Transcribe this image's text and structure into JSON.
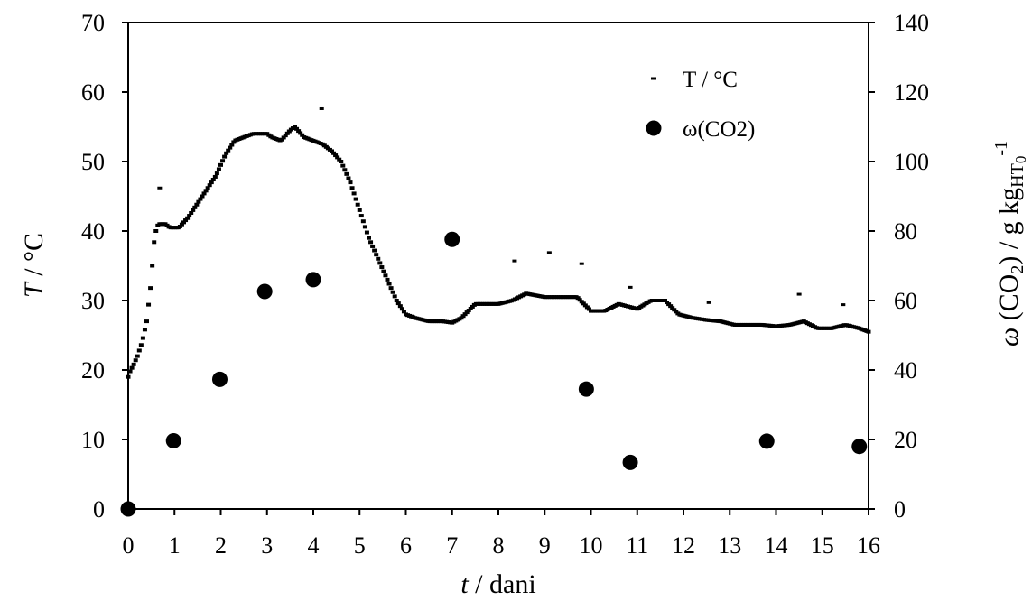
{
  "chart_data": {
    "type": "scatter",
    "xlabel": {
      "italic": "t",
      "rest": " / dani"
    },
    "ylabel_left": {
      "italic": "T",
      "rest": " / °C"
    },
    "ylabel_right": {
      "parts": [
        [
          "ω",
          "italic"
        ],
        [
          " (CO",
          ""
        ],
        [
          "2",
          "sub"
        ],
        [
          ")  / g kg",
          ""
        ],
        [
          "HT",
          "sub"
        ],
        [
          "0",
          "subsub"
        ],
        [
          "-1",
          "sup"
        ]
      ]
    },
    "xlim": [
      0,
      16
    ],
    "ylim_left": [
      0,
      70
    ],
    "ylim_right": [
      0,
      140
    ],
    "x_ticks": [
      0,
      1,
      2,
      3,
      4,
      5,
      6,
      7,
      8,
      9,
      10,
      11,
      12,
      13,
      14,
      15,
      16
    ],
    "y_left_ticks": [
      0,
      10,
      20,
      30,
      40,
      50,
      60,
      70
    ],
    "y_right_ticks": [
      0,
      20,
      40,
      60,
      80,
      100,
      120,
      140
    ],
    "grid": false,
    "legend": {
      "placement": "top-right",
      "entries": [
        {
          "label": "T / °C",
          "marker": "dash"
        },
        {
          "label": "ω(CO2)",
          "marker": "circle"
        }
      ]
    },
    "series": [
      {
        "name": "T / °C",
        "axis": "left",
        "marker": "dash",
        "keypoints": [
          [
            0,
            19
          ],
          [
            0.05,
            20
          ],
          [
            0.1,
            20.5
          ],
          [
            0.2,
            22
          ],
          [
            0.3,
            24
          ],
          [
            0.4,
            27
          ],
          [
            0.5,
            33
          ],
          [
            0.55,
            38
          ],
          [
            0.6,
            40
          ],
          [
            0.65,
            41
          ],
          [
            0.8,
            41
          ],
          [
            0.9,
            40.5
          ],
          [
            1.1,
            40.5
          ],
          [
            1.3,
            42
          ],
          [
            1.5,
            44
          ],
          [
            1.7,
            46
          ],
          [
            1.9,
            48
          ],
          [
            2.1,
            51
          ],
          [
            2.3,
            53
          ],
          [
            2.5,
            53.5
          ],
          [
            2.7,
            54
          ],
          [
            2.9,
            54
          ],
          [
            3.0,
            54
          ],
          [
            3.1,
            53.5
          ],
          [
            3.3,
            53
          ],
          [
            3.5,
            54.5
          ],
          [
            3.6,
            55
          ],
          [
            3.8,
            53.5
          ],
          [
            4.0,
            53
          ],
          [
            4.2,
            52.5
          ],
          [
            4.4,
            51.5
          ],
          [
            4.6,
            50
          ],
          [
            4.8,
            47
          ],
          [
            5.0,
            43
          ],
          [
            5.2,
            39
          ],
          [
            5.4,
            36
          ],
          [
            5.6,
            33
          ],
          [
            5.8,
            30
          ],
          [
            6.0,
            28
          ],
          [
            6.2,
            27.5
          ],
          [
            6.5,
            27
          ],
          [
            6.8,
            27
          ],
          [
            7.0,
            26.8
          ],
          [
            7.2,
            27.5
          ],
          [
            7.5,
            29.5
          ],
          [
            7.8,
            29.5
          ],
          [
            8.0,
            29.5
          ],
          [
            8.3,
            30
          ],
          [
            8.6,
            31
          ],
          [
            9.0,
            30.5
          ],
          [
            9.3,
            30.5
          ],
          [
            9.7,
            30.5
          ],
          [
            10.0,
            28.5
          ],
          [
            10.3,
            28.5
          ],
          [
            10.6,
            29.5
          ],
          [
            11.0,
            28.8
          ],
          [
            11.3,
            30
          ],
          [
            11.6,
            30
          ],
          [
            11.9,
            28
          ],
          [
            12.2,
            27.5
          ],
          [
            12.5,
            27.2
          ],
          [
            12.8,
            27
          ],
          [
            13.1,
            26.5
          ],
          [
            13.4,
            26.5
          ],
          [
            13.7,
            26.5
          ],
          [
            14.0,
            26.3
          ],
          [
            14.3,
            26.5
          ],
          [
            14.6,
            27
          ],
          [
            14.9,
            26
          ],
          [
            15.2,
            26
          ],
          [
            15.5,
            26.5
          ],
          [
            15.8,
            26
          ],
          [
            16.0,
            25.5
          ]
        ],
        "outliers": [
          [
            0.68,
            46.2
          ],
          [
            4.18,
            57.6
          ],
          [
            8.35,
            35.7
          ],
          [
            9.1,
            36.9
          ],
          [
            9.8,
            35.3
          ],
          [
            10.85,
            31.9
          ],
          [
            12.55,
            29.7
          ],
          [
            14.5,
            30.9
          ],
          [
            15.45,
            29.4
          ]
        ]
      },
      {
        "name": "ω(CO2)",
        "axis": "right",
        "marker": "circle",
        "points": [
          [
            0,
            0
          ],
          [
            0.98,
            19.6
          ],
          [
            1.98,
            37.3
          ],
          [
            2.95,
            62.6
          ],
          [
            4.0,
            66
          ],
          [
            7.0,
            77.6
          ],
          [
            9.9,
            34.5
          ],
          [
            10.85,
            13.4
          ],
          [
            13.8,
            19.5
          ],
          [
            15.8,
            18
          ]
        ]
      }
    ]
  }
}
